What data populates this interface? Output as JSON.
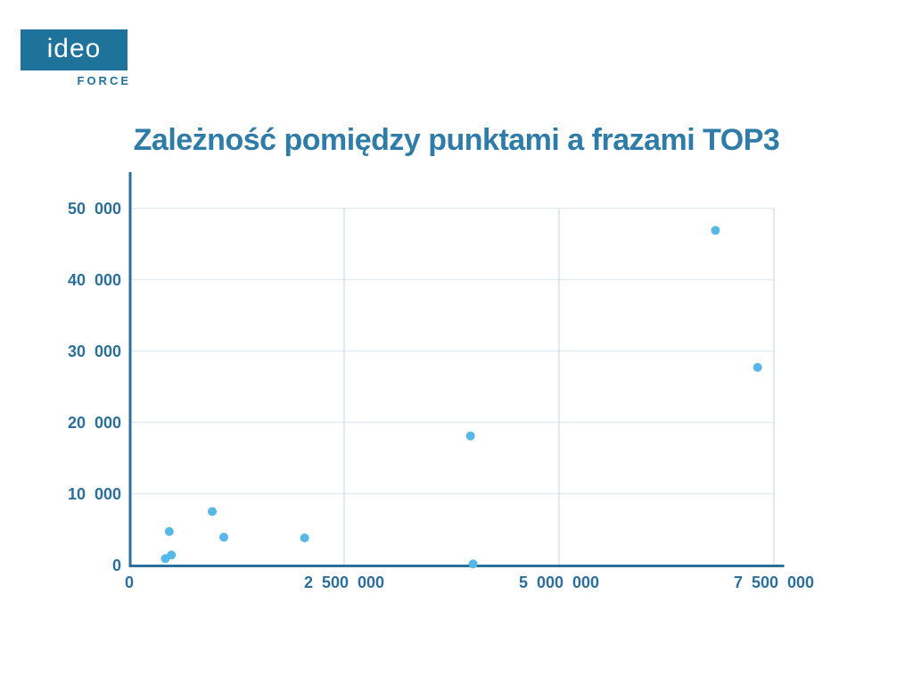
{
  "logo": {
    "brand": "ideo",
    "sub": "FORCE"
  },
  "header": {
    "title": "Zależność pomiędzy punktami a frazami TOP3"
  },
  "colors": {
    "accent": "#2B6F9A",
    "title": "#2E7CA7",
    "logo_box": "#1F739A",
    "logo_sub": "#1F739A",
    "point": "#57B8E8",
    "grid_horizontal": "#E1EBF3",
    "grid_vertical": "#D4E4EF"
  },
  "chart_data": {
    "type": "scatter",
    "title": "Zależność pomiędzy punktami a frazami TOP3",
    "xlabel": "",
    "ylabel": "",
    "xlim": [
      0,
      7500000
    ],
    "ylim": [
      0,
      50000
    ],
    "grid": true,
    "legend": false,
    "xticks": {
      "values": [
        0,
        2500000,
        5000000,
        7500000
      ],
      "labels": [
        "0",
        "2 500 000",
        "5 000 000",
        "7 500 000"
      ]
    },
    "yticks": {
      "values": [
        0,
        10000,
        20000,
        30000,
        40000,
        50000
      ],
      "labels": [
        "0",
        "10 000",
        "20 000",
        "30 000",
        "40 000",
        "50 000"
      ]
    },
    "points": [
      {
        "x": 420000,
        "y": 900
      },
      {
        "x": 490000,
        "y": 1400
      },
      {
        "x": 465000,
        "y": 4700
      },
      {
        "x": 965000,
        "y": 7500
      },
      {
        "x": 1100000,
        "y": 3900
      },
      {
        "x": 2040000,
        "y": 3800
      },
      {
        "x": 3970000,
        "y": 18100
      },
      {
        "x": 4000000,
        "y": 150
      },
      {
        "x": 6820000,
        "y": 46900
      },
      {
        "x": 7310000,
        "y": 27700
      }
    ]
  }
}
